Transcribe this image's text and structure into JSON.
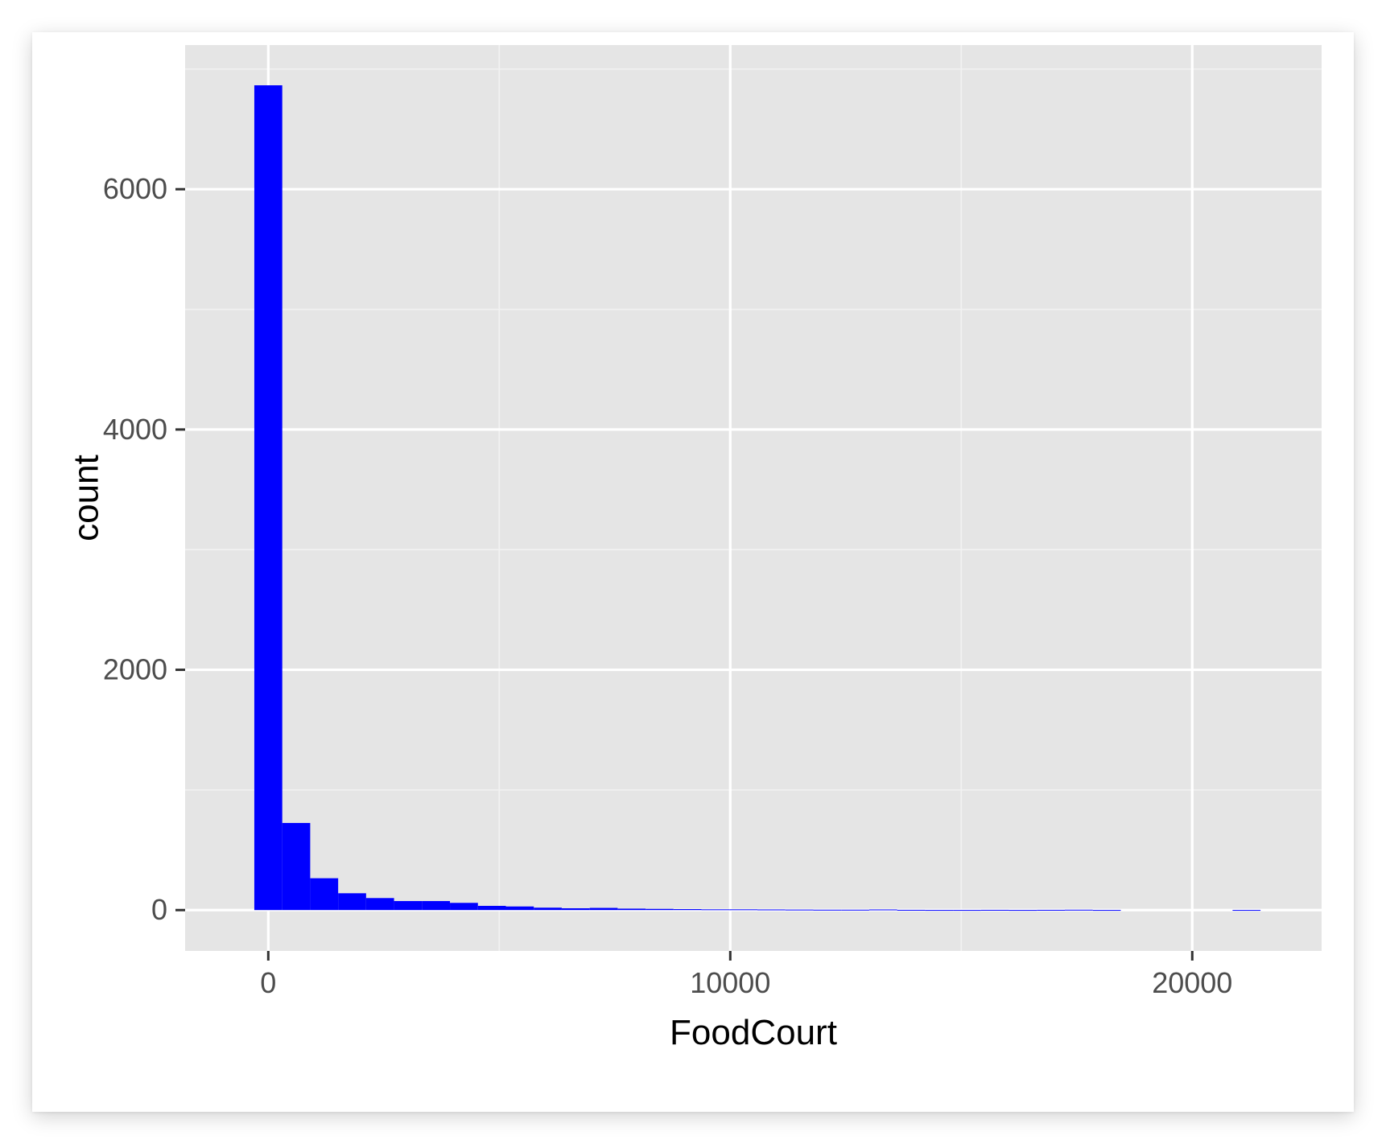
{
  "chart_data": {
    "type": "bar",
    "title": "",
    "xlabel": "FoodCourt",
    "ylabel": "count",
    "xlim": [
      -1800,
      22800
    ],
    "ylim": [
      -340,
      7200
    ],
    "x_ticks": [
      {
        "value": 0,
        "label": "0"
      },
      {
        "value": 10000,
        "label": "10000"
      },
      {
        "value": 20000,
        "label": "20000"
      }
    ],
    "x_minor_ticks": [
      5000,
      15000
    ],
    "y_ticks": [
      {
        "value": 0,
        "label": "0"
      },
      {
        "value": 2000,
        "label": "2000"
      },
      {
        "value": 4000,
        "label": "4000"
      },
      {
        "value": 6000,
        "label": "6000"
      }
    ],
    "y_minor_ticks": [
      1000,
      3000,
      5000,
      7000
    ],
    "bin_width": 605,
    "bins": [
      {
        "x": 0,
        "count": 6865
      },
      {
        "x": 605,
        "count": 725
      },
      {
        "x": 1210,
        "count": 265
      },
      {
        "x": 1815,
        "count": 140
      },
      {
        "x": 2420,
        "count": 100
      },
      {
        "x": 3025,
        "count": 75
      },
      {
        "x": 3630,
        "count": 75
      },
      {
        "x": 4235,
        "count": 60
      },
      {
        "x": 4840,
        "count": 35
      },
      {
        "x": 5445,
        "count": 30
      },
      {
        "x": 6050,
        "count": 20
      },
      {
        "x": 6655,
        "count": 15
      },
      {
        "x": 7260,
        "count": 18
      },
      {
        "x": 7865,
        "count": 12
      },
      {
        "x": 8470,
        "count": 10
      },
      {
        "x": 9075,
        "count": 8
      },
      {
        "x": 9680,
        "count": 6
      },
      {
        "x": 10285,
        "count": 6
      },
      {
        "x": 10890,
        "count": 5
      },
      {
        "x": 11495,
        "count": 4
      },
      {
        "x": 12100,
        "count": 3
      },
      {
        "x": 12705,
        "count": 3
      },
      {
        "x": 13310,
        "count": 5
      },
      {
        "x": 13915,
        "count": 2
      },
      {
        "x": 14520,
        "count": 1
      },
      {
        "x": 15125,
        "count": 1
      },
      {
        "x": 15730,
        "count": 2
      },
      {
        "x": 16335,
        "count": 1
      },
      {
        "x": 16940,
        "count": 2
      },
      {
        "x": 17545,
        "count": 3
      },
      {
        "x": 18150,
        "count": 1
      },
      {
        "x": 18755,
        "count": 0
      },
      {
        "x": 19360,
        "count": 0
      },
      {
        "x": 19965,
        "count": 0
      },
      {
        "x": 20570,
        "count": 0
      },
      {
        "x": 21175,
        "count": 1
      }
    ],
    "grid": true,
    "legend": "none",
    "colors": {
      "bar_fill": "#0000ff",
      "panel_background": "#e5e5e5",
      "grid_major": "#ffffff",
      "grid_minor": "#f2f2f2",
      "tick_label": "#4d4d4d",
      "axis_title": "#000000",
      "tick_mark": "#333333"
    }
  }
}
